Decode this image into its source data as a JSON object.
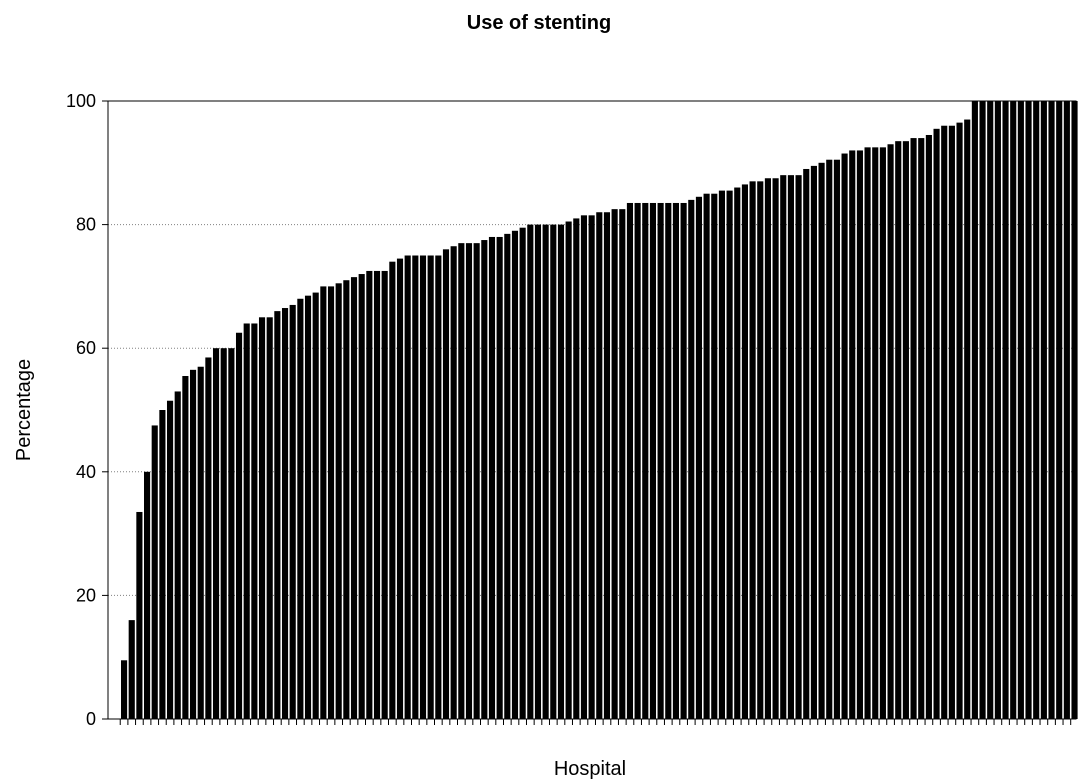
{
  "chart_data": {
    "type": "bar",
    "title": "Use of stenting",
    "xlabel": "Hospital",
    "ylabel": "Percentage",
    "ylim": [
      0,
      100
    ],
    "yticks": [
      0,
      20,
      40,
      60,
      80,
      100
    ],
    "grid": "horizontal dotted",
    "bar_color": "#000000",
    "values": [
      9.5,
      16,
      33.5,
      40,
      47.5,
      50,
      51.5,
      53,
      55.5,
      56.5,
      57,
      58.5,
      60,
      60,
      60,
      62.5,
      64,
      64,
      65,
      65,
      66,
      66.5,
      67,
      68,
      68.5,
      69,
      70,
      70,
      70.5,
      71,
      71.5,
      72,
      72.5,
      72.5,
      72.5,
      74,
      74.5,
      75,
      75,
      75,
      75,
      75,
      76,
      76.5,
      77,
      77,
      77,
      77.5,
      78,
      78,
      78.5,
      79,
      79.5,
      80,
      80,
      80,
      80,
      80,
      80.5,
      81,
      81.5,
      81.5,
      82,
      82,
      82.5,
      82.5,
      83.5,
      83.5,
      83.5,
      83.5,
      83.5,
      83.5,
      83.5,
      83.5,
      84,
      84.5,
      85,
      85,
      85.5,
      85.5,
      86,
      86.5,
      87,
      87,
      87.5,
      87.5,
      88,
      88,
      88,
      89,
      89.5,
      90,
      90.5,
      90.5,
      91.5,
      92,
      92,
      92.5,
      92.5,
      92.5,
      93,
      93.5,
      93.5,
      94,
      94,
      94.5,
      95.5,
      96,
      96,
      96.5,
      97,
      100,
      100,
      100,
      100,
      100,
      100,
      100,
      100,
      100,
      100,
      100,
      100,
      100,
      100
    ]
  }
}
